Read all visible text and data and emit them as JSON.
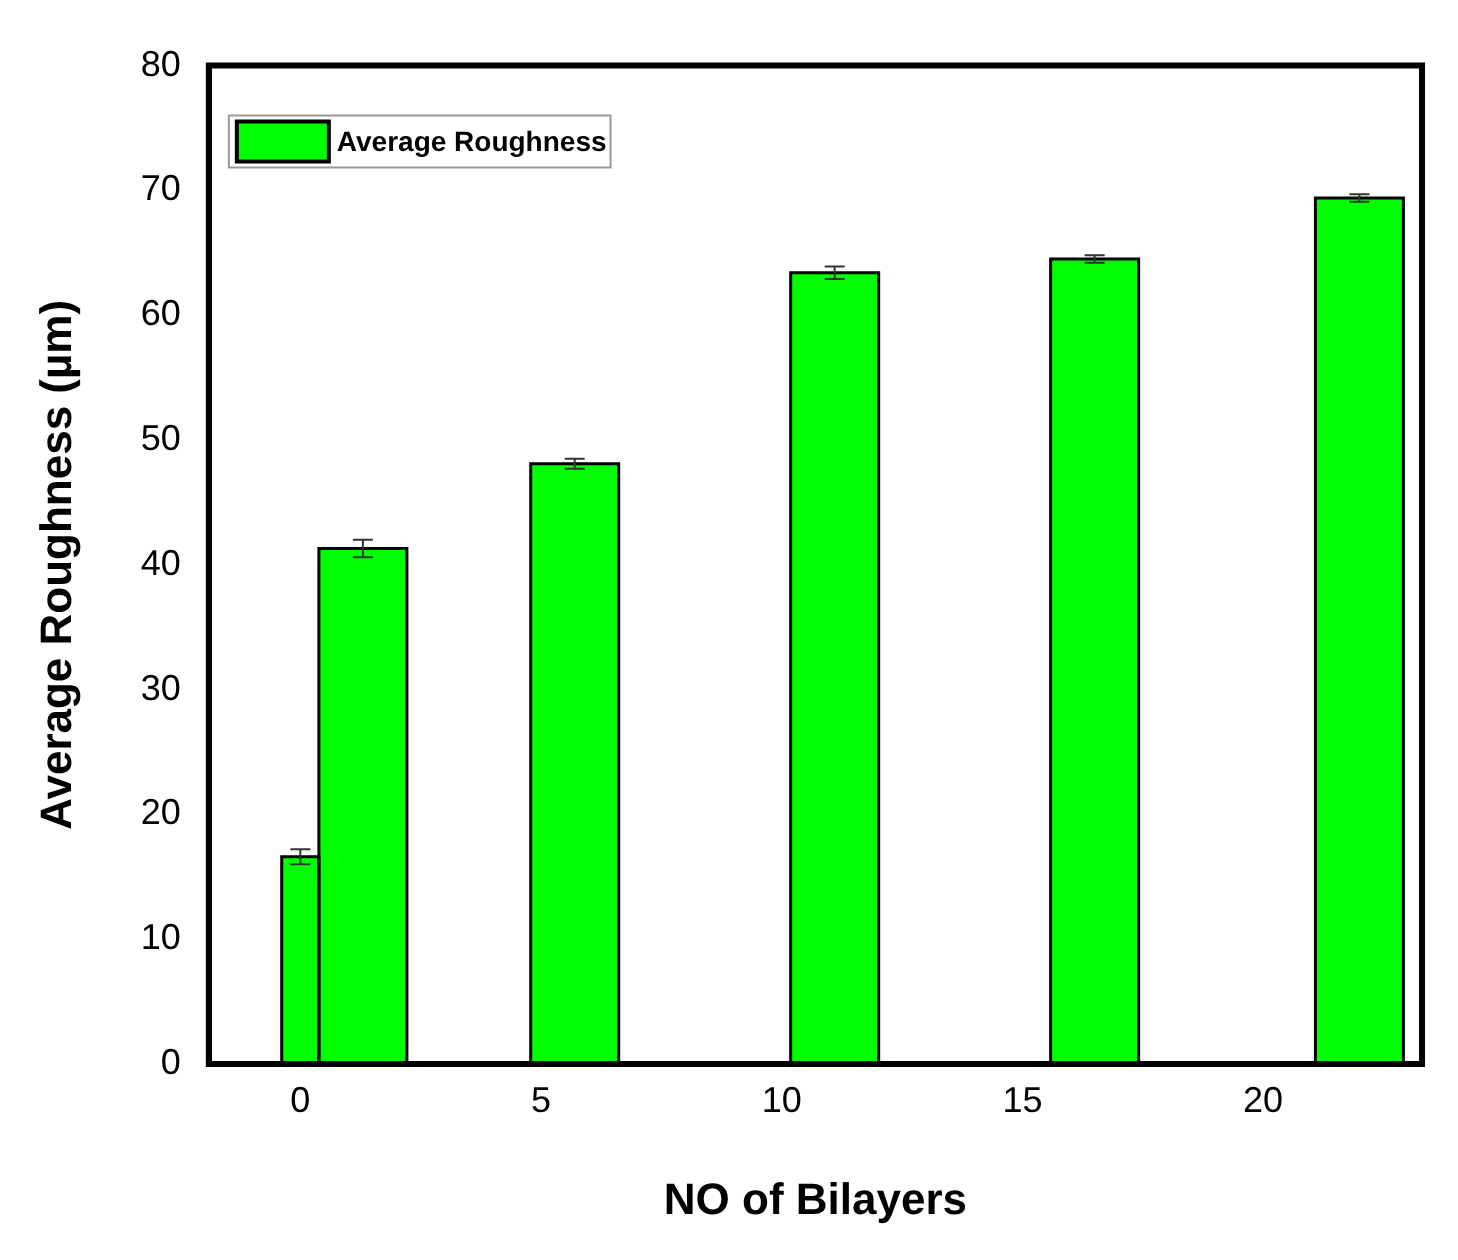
{
  "chart_data": {
    "type": "bar",
    "xlabel": "NO of Bilayers",
    "ylabel": "Average Roughness (µm)",
    "x": [
      0,
      1.3,
      5.7,
      11.1,
      16.5,
      22.0
    ],
    "series": [
      {
        "name": "Average Roughness",
        "color": "#00ff00",
        "values": [
          16.6,
          41.3,
          48.1,
          63.4,
          64.5,
          69.4
        ],
        "errors": [
          0.6,
          0.7,
          0.4,
          0.5,
          0.3,
          0.3
        ]
      }
    ],
    "xlim": [
      -1.9,
      23.3
    ],
    "xticks": [
      0,
      5,
      10,
      15,
      20
    ],
    "ylim": [
      0,
      80
    ],
    "yticks": [
      0,
      10,
      20,
      30,
      40,
      50,
      60,
      70,
      80
    ],
    "grid": false,
    "legend": "top left"
  }
}
